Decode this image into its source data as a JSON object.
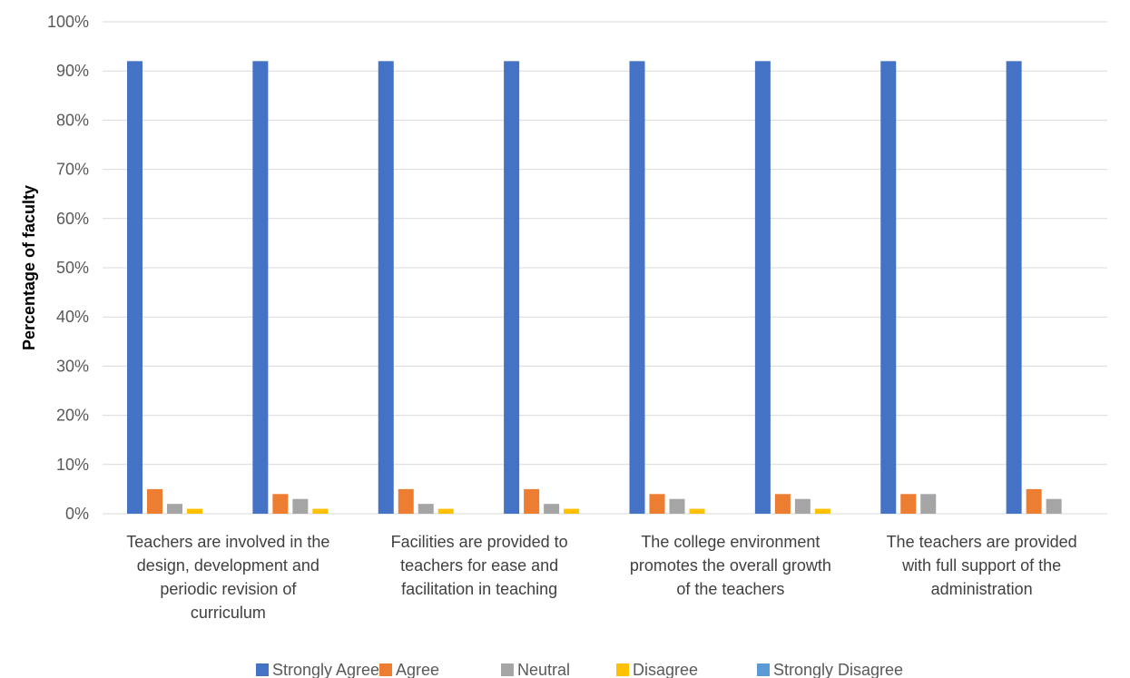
{
  "chart_data": {
    "type": "bar",
    "categories": [
      "",
      "",
      "",
      "",
      "",
      "",
      "",
      ""
    ],
    "category_labels": [
      [
        "Teachers are involved in the",
        "design, development and",
        "periodic revision of",
        "curriculum"
      ],
      [
        "Facilities are provided to",
        "teachers for ease and",
        "facilitation in teaching"
      ],
      [
        "The college environment",
        "promotes  the overall growth",
        "of the teachers"
      ],
      [
        "The teachers are provided",
        "with full support of the",
        "administration"
      ]
    ],
    "series": [
      {
        "name": "Strongly Agree",
        "color": "#4472C4",
        "values": [
          92,
          92,
          92,
          92,
          92,
          92,
          92,
          92
        ]
      },
      {
        "name": "Agree",
        "color": "#ED7D31",
        "values": [
          5,
          4,
          5,
          5,
          4,
          4,
          4,
          5
        ]
      },
      {
        "name": "Neutral",
        "color": "#A5A5A5",
        "values": [
          2,
          3,
          2,
          2,
          3,
          3,
          4,
          3
        ]
      },
      {
        "name": "Disagree",
        "color": "#FFC000",
        "values": [
          1,
          1,
          1,
          1,
          1,
          1,
          0,
          0
        ]
      },
      {
        "name": "Strongly Disagree",
        "color": "#5B9BD5",
        "values": [
          0,
          0,
          0,
          0,
          0,
          0,
          0,
          0
        ]
      }
    ],
    "title": "",
    "xlabel": "",
    "ylabel": "Percentage of faculty",
    "ylim": [
      0,
      100
    ],
    "yticks": [
      "0%",
      "10%",
      "20%",
      "30%",
      "40%",
      "50%",
      "60%",
      "70%",
      "80%",
      "90%",
      "100%"
    ],
    "grid": true,
    "legend_position": "bottom",
    "gridline_color": "#D9D9D9"
  }
}
